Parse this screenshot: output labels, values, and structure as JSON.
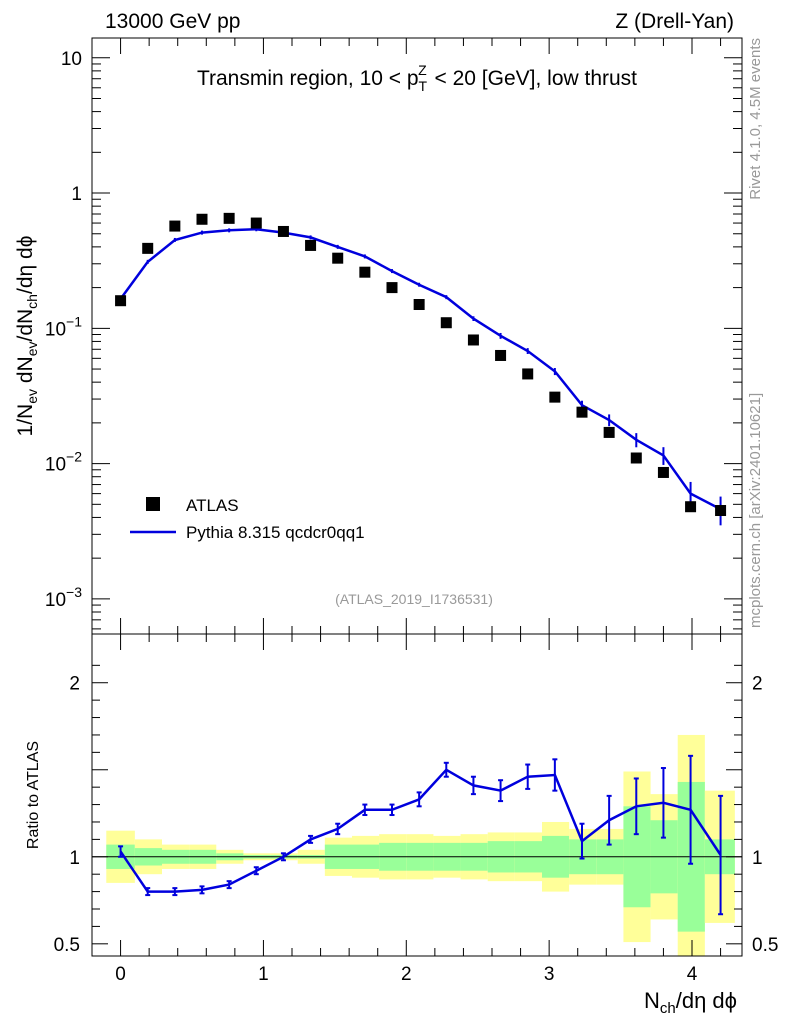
{
  "header": {
    "left": "13000 GeV pp",
    "right": "Z (Drell-Yan)"
  },
  "side": {
    "rivet": "Rivet 4.1.0,  4.5M events",
    "mcplots": "mcplots.cern.ch [arXiv:2401.10621]"
  },
  "chart_data": {
    "type": "scatter",
    "title": "Transmin region, 10 < p_T^Z < 20 [GeV], low thrust",
    "analysis_label": "(ATLAS_2019_I1736531)",
    "xlabel": "N_ch/dη dϕ",
    "ylabel": "1/N_ev dN_ev/dN_ch/dη dϕ",
    "ratio_ylabel": "Ratio to ATLAS",
    "xlim": [
      -0.2,
      4.35
    ],
    "ylim": [
      0.00055,
      14
    ],
    "yscale": "log",
    "ratio_ylim": [
      0.43,
      2.28
    ],
    "x_ticks": [
      0,
      1,
      2,
      3,
      4
    ],
    "y_ticks": [
      {
        "value": 0.001,
        "base": "10",
        "exp": "−3"
      },
      {
        "value": 0.01,
        "base": "10",
        "exp": "−2"
      },
      {
        "value": 0.1,
        "base": "10",
        "exp": "−1"
      },
      {
        "value": 1,
        "base": "1",
        "exp": ""
      },
      {
        "value": 10,
        "base": "10",
        "exp": ""
      }
    ],
    "ratio_ticks": [
      {
        "value": 0.5,
        "label": "0.5"
      },
      {
        "value": 1,
        "label": "1"
      },
      {
        "value": 2,
        "label": "2"
      }
    ],
    "x": [
      0.0,
      0.19,
      0.38,
      0.57,
      0.76,
      0.95,
      1.14,
      1.33,
      1.52,
      1.71,
      1.9,
      2.09,
      2.28,
      2.47,
      2.66,
      2.85,
      3.04,
      3.23,
      3.42,
      3.61,
      3.8,
      3.99,
      4.2
    ],
    "series": [
      {
        "name": "ATLAS",
        "color": "#000000",
        "values": [
          0.16,
          0.39,
          0.57,
          0.64,
          0.65,
          0.6,
          0.52,
          0.41,
          0.33,
          0.26,
          0.2,
          0.15,
          0.11,
          0.082,
          0.063,
          0.046,
          0.031,
          0.024,
          0.017,
          0.011,
          0.0086,
          0.0048,
          0.0045
        ],
        "band_edges": [
          -0.1,
          0.1,
          0.29,
          0.48,
          0.67,
          0.86,
          1.05,
          1.24,
          1.43,
          1.62,
          1.81,
          2.0,
          2.19,
          2.38,
          2.57,
          2.76,
          2.95,
          3.14,
          3.33,
          3.52,
          3.71,
          3.9,
          4.09,
          4.3
        ],
        "band_stat_lo": [
          0.93,
          0.95,
          0.96,
          0.96,
          0.98,
          0.99,
          0.99,
          0.99,
          0.93,
          0.93,
          0.92,
          0.92,
          0.92,
          0.92,
          0.91,
          0.91,
          0.88,
          0.9,
          0.9,
          0.71,
          0.79,
          0.57,
          0.9
        ],
        "band_stat_hi": [
          1.07,
          1.05,
          1.04,
          1.04,
          1.02,
          1.01,
          1.01,
          1.01,
          1.07,
          1.07,
          1.08,
          1.08,
          1.08,
          1.08,
          1.09,
          1.09,
          1.12,
          1.1,
          1.1,
          1.29,
          1.21,
          1.43,
          1.1
        ],
        "band_tot_lo": [
          0.85,
          0.9,
          0.93,
          0.93,
          0.96,
          0.98,
          0.98,
          0.96,
          0.89,
          0.88,
          0.87,
          0.87,
          0.88,
          0.87,
          0.86,
          0.86,
          0.8,
          0.84,
          0.84,
          0.51,
          0.64,
          0.3,
          0.62
        ],
        "band_tot_hi": [
          1.15,
          1.1,
          1.07,
          1.07,
          1.04,
          1.02,
          1.02,
          1.04,
          1.11,
          1.12,
          1.13,
          1.13,
          1.12,
          1.13,
          1.14,
          1.14,
          1.2,
          1.16,
          1.16,
          1.49,
          1.36,
          1.7,
          1.38
        ]
      },
      {
        "name": "Pythia 8.315 qcdcr0qq1",
        "color": "#0000dd",
        "values": [
          0.165,
          0.31,
          0.45,
          0.51,
          0.53,
          0.54,
          0.51,
          0.47,
          0.4,
          0.34,
          0.265,
          0.21,
          0.17,
          0.118,
          0.088,
          0.068,
          0.048,
          0.027,
          0.021,
          0.015,
          0.0115,
          0.006,
          0.0046
        ],
        "ratio": [
          1.03,
          0.8,
          0.8,
          0.81,
          0.84,
          0.92,
          1.0,
          1.1,
          1.16,
          1.27,
          1.27,
          1.33,
          1.5,
          1.41,
          1.38,
          1.46,
          1.47,
          1.09,
          1.21,
          1.29,
          1.31,
          1.27,
          1.01
        ],
        "ratio_err": [
          0.03,
          0.02,
          0.02,
          0.02,
          0.02,
          0.02,
          0.02,
          0.02,
          0.03,
          0.03,
          0.03,
          0.04,
          0.04,
          0.05,
          0.06,
          0.07,
          0.09,
          0.1,
          0.14,
          0.16,
          0.2,
          0.31,
          0.34
        ],
        "err_frac": [
          0.02,
          0.02,
          0.015,
          0.015,
          0.015,
          0.015,
          0.02,
          0.02,
          0.02,
          0.025,
          0.025,
          0.03,
          0.03,
          0.04,
          0.05,
          0.05,
          0.06,
          0.08,
          0.1,
          0.12,
          0.15,
          0.22,
          0.24
        ]
      }
    ],
    "legend": [
      "ATLAS",
      "Pythia 8.315 qcdcr0qq1"
    ],
    "legend_position": "bottom-left",
    "band_colors": {
      "stat": "#99ff99",
      "total": "#ffff99"
    }
  }
}
